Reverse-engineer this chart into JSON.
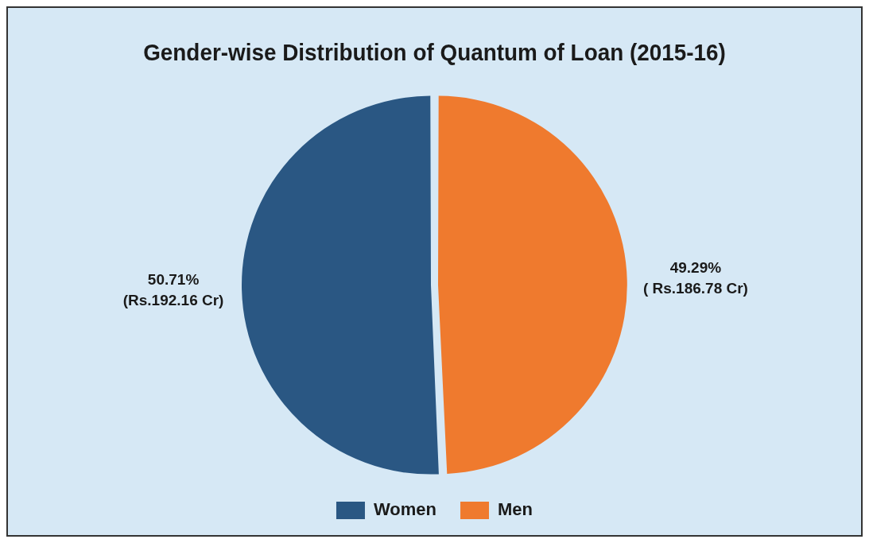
{
  "chart_data": {
    "type": "pie",
    "title": "Gender-wise Distribution of Quantum of Loan (2015-16)",
    "categories": [
      "Women",
      "Men"
    ],
    "values": [
      50.71,
      49.29
    ],
    "colors": [
      "#2a5783",
      "#ef7a2e"
    ],
    "value_labels": [
      "50.71%\n(Rs.192.16 Cr)",
      "49.29%\n( Rs.186.78 Cr)"
    ],
    "legend": "bottom"
  }
}
